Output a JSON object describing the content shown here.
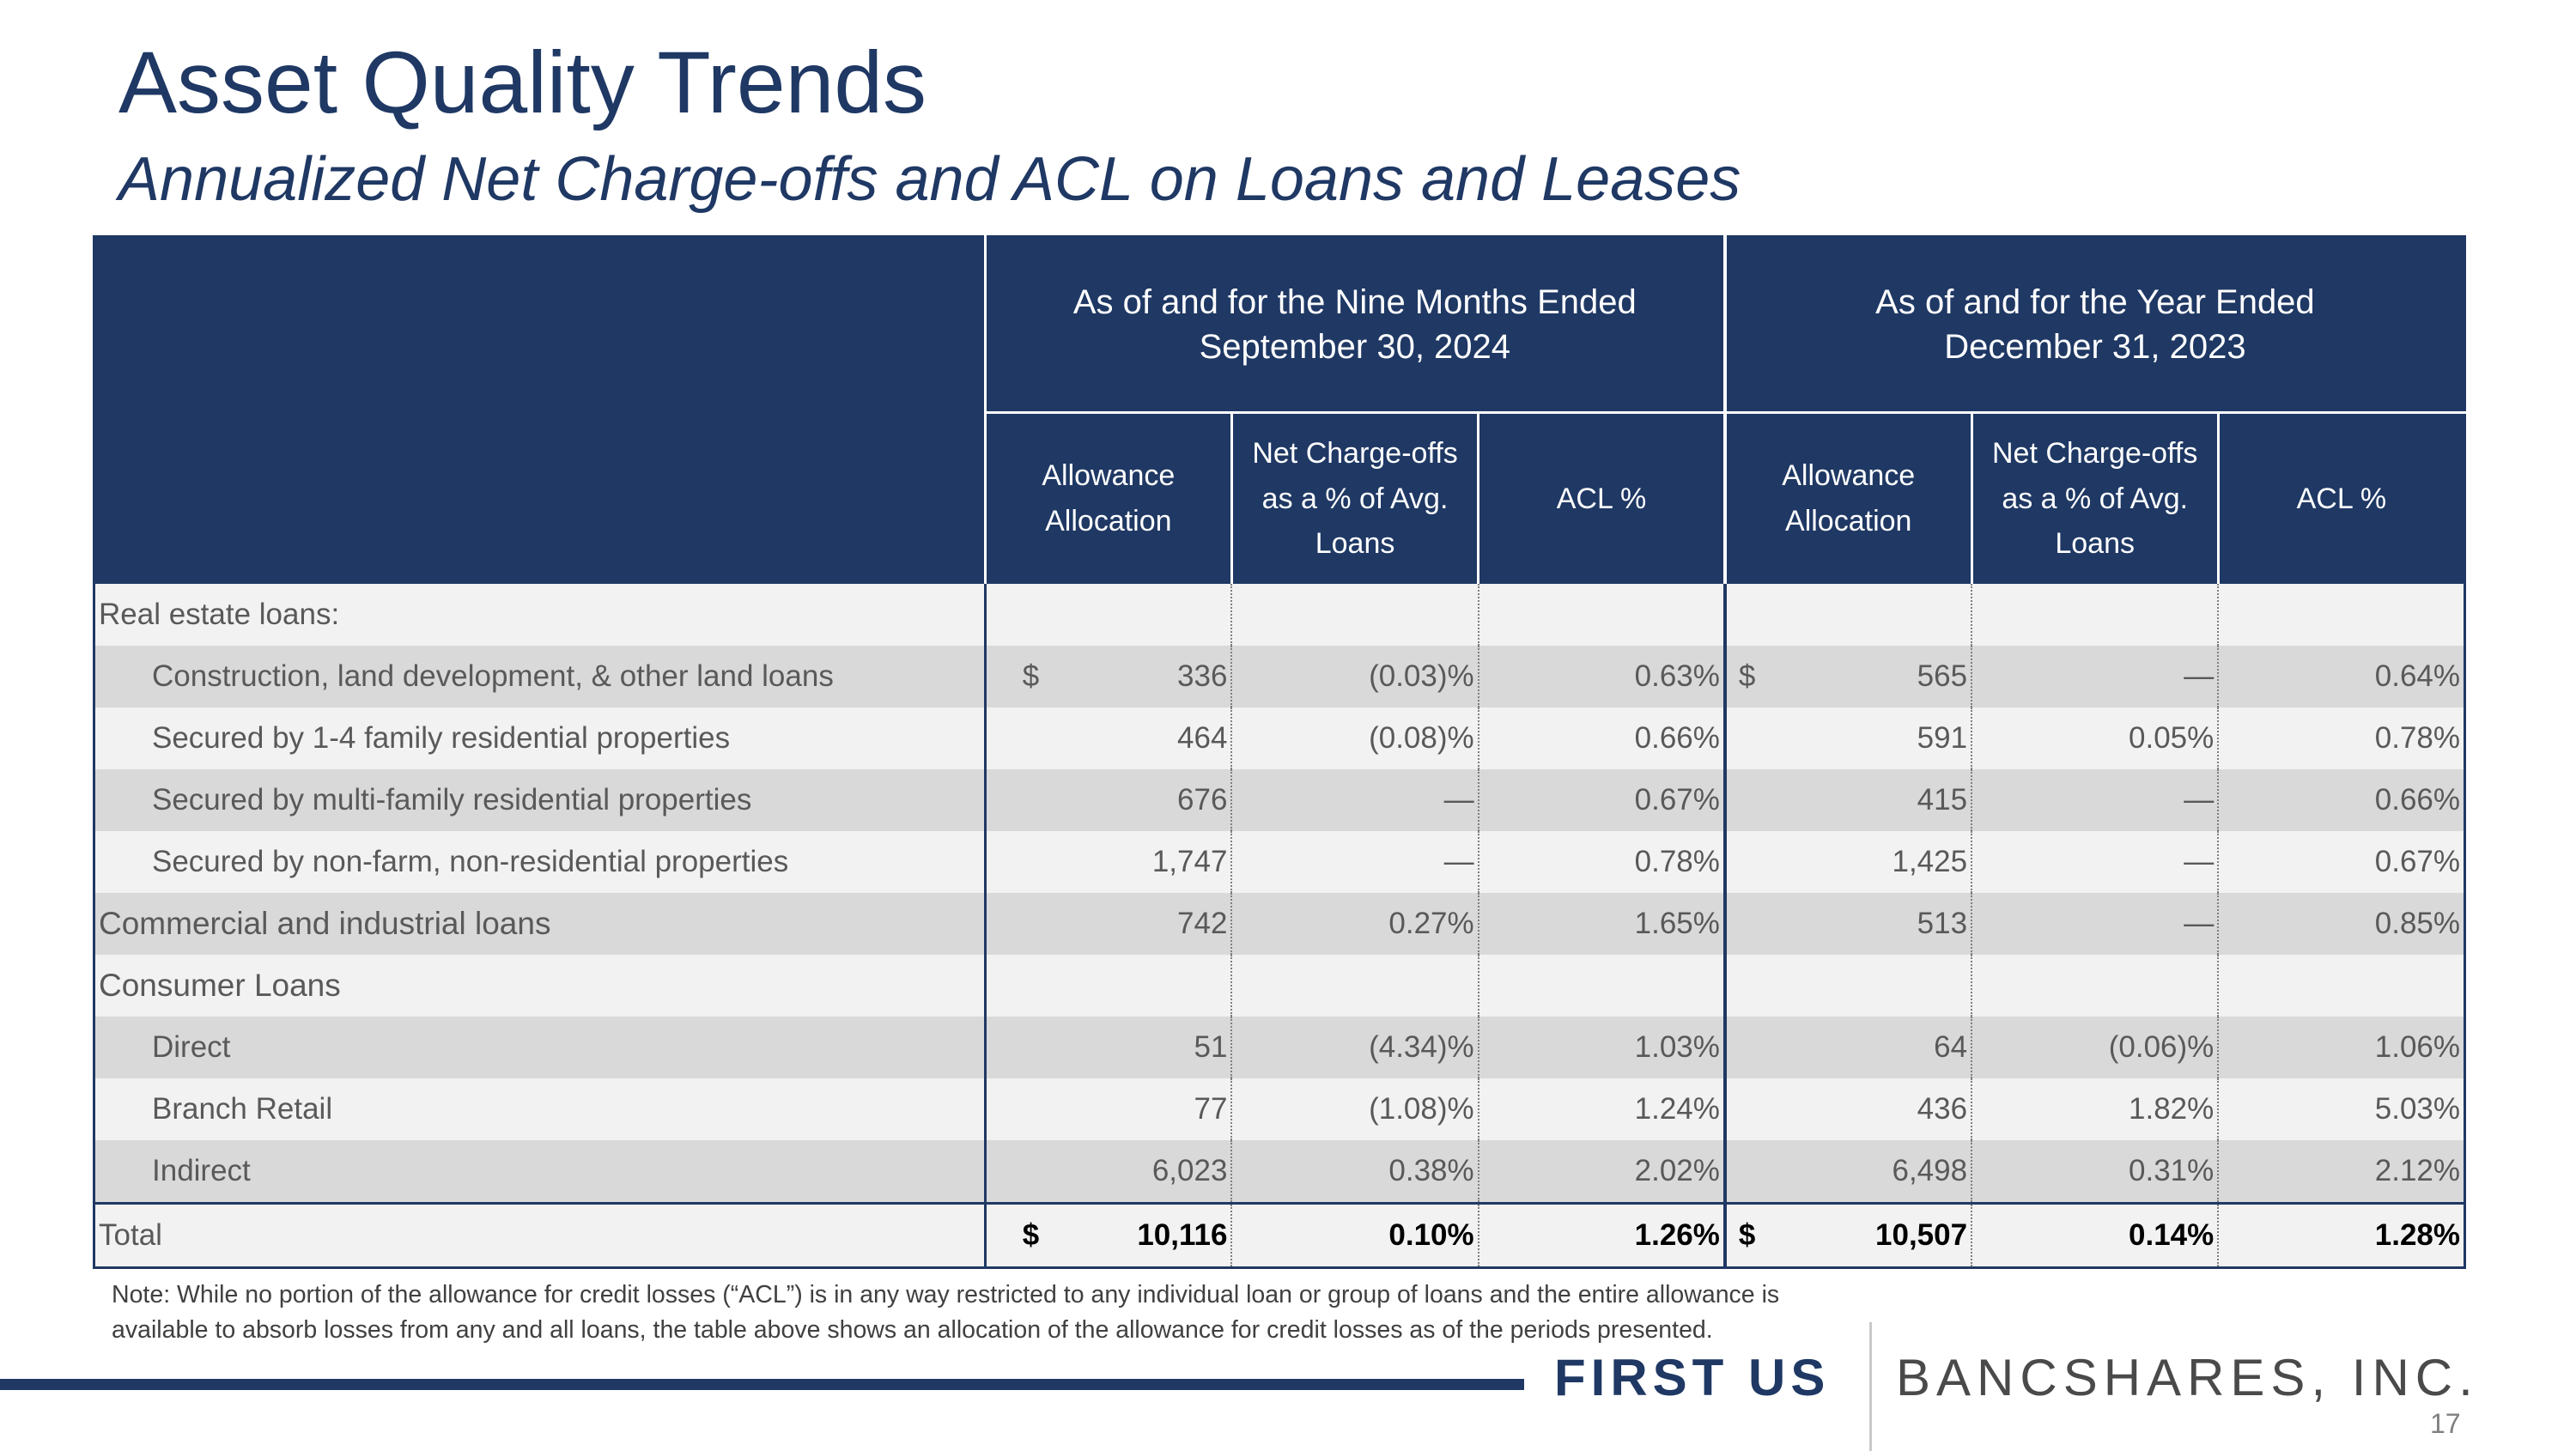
{
  "title": "Asset Quality Trends",
  "subtitle": "Annualized Net Charge-offs and ACL on Loans and Leases",
  "table": {
    "group_headers": [
      {
        "line1": "As of and for the Nine Months Ended",
        "line2": "September 30, 2024"
      },
      {
        "line1": "As of and for the Year Ended",
        "line2": "December 31, 2023"
      }
    ],
    "sub_headers": [
      {
        "line1": "Allowance",
        "line2": "Allocation",
        "line3": ""
      },
      {
        "line1": "Net Charge-offs",
        "line2": "as a % of Avg.",
        "line3": "Loans"
      },
      {
        "line1": "ACL %",
        "line2": "",
        "line3": ""
      },
      {
        "line1": "Allowance",
        "line2": "Allocation",
        "line3": ""
      },
      {
        "line1": "Net Charge-offs",
        "line2": "as a % of Avg.",
        "line3": "Loans"
      },
      {
        "line1": "ACL %",
        "line2": "",
        "line3": ""
      }
    ],
    "rows": [
      {
        "label": "Real estate loans:",
        "a1": "",
        "a1_cur": "",
        "n1": "",
        "p1": "",
        "a2": "",
        "a2_cur": "",
        "n2": "",
        "p2": ""
      },
      {
        "label": "Construction, land development, & other land loans",
        "a1": "336",
        "a1_cur": "$",
        "n1": "(0.03)%",
        "p1": "0.63%",
        "a2": "565",
        "a2_cur": "$",
        "n2": "—",
        "p2": "0.64%"
      },
      {
        "label": "Secured by 1-4 family residential properties",
        "a1": "464",
        "a1_cur": "",
        "n1": "(0.08)%",
        "p1": "0.66%",
        "a2": "591",
        "a2_cur": "",
        "n2": "0.05%",
        "p2": "0.78%"
      },
      {
        "label": "Secured by multi-family residential properties",
        "a1": "676",
        "a1_cur": "",
        "n1": "—",
        "p1": "0.67%",
        "a2": "415",
        "a2_cur": "",
        "n2": "—",
        "p2": "0.66%"
      },
      {
        "label": "Secured by non-farm, non-residential properties",
        "a1": "1,747",
        "a1_cur": "",
        "n1": "—",
        "p1": "0.78%",
        "a2": "1,425",
        "a2_cur": "",
        "n2": "—",
        "p2": "0.67%"
      },
      {
        "label": "Commercial and industrial loans",
        "a1": "742",
        "a1_cur": "",
        "n1": "0.27%",
        "p1": "1.65%",
        "a2": "513",
        "a2_cur": "",
        "n2": "—",
        "p2": "0.85%"
      },
      {
        "label": "Consumer Loans",
        "a1": "",
        "a1_cur": "",
        "n1": "",
        "p1": "",
        "a2": "",
        "a2_cur": "",
        "n2": "",
        "p2": ""
      },
      {
        "label": "Direct",
        "a1": "51",
        "a1_cur": "",
        "n1": "(4.34)%",
        "p1": "1.03%",
        "a2": "64",
        "a2_cur": "",
        "n2": "(0.06)%",
        "p2": "1.06%"
      },
      {
        "label": "Branch Retail",
        "a1": "77",
        "a1_cur": "",
        "n1": "(1.08)%",
        "p1": "1.24%",
        "a2": "436",
        "a2_cur": "",
        "n2": "1.82%",
        "p2": "5.03%"
      },
      {
        "label": "Indirect",
        "a1": "6,023",
        "a1_cur": "",
        "n1": "0.38%",
        "p1": "2.02%",
        "a2": "6,498",
        "a2_cur": "",
        "n2": "0.31%",
        "p2": "2.12%"
      }
    ],
    "total": {
      "label": "Total",
      "a1_cur": "$",
      "a1": "10,116",
      "n1": "0.10%",
      "p1": "1.26%",
      "a2_cur": "$",
      "a2": "10,507",
      "n2": "0.14%",
      "p2": "1.28%"
    }
  },
  "note": {
    "line1": "Note: While no portion of the allowance for credit losses (“ACL”) is in any way restricted to any individual loan or group of loans and the entire allowance is",
    "line2": "available to absorb losses from any and all loans, the table above shows an allocation of the allowance for credit losses as of the periods presented."
  },
  "logo": {
    "first": "FIRST US",
    "rest": "BANCSHARES, INC."
  },
  "page_number": "17",
  "colors": {
    "navy": "#1f3864",
    "row_light": "#f2f2f2",
    "row_dark": "#d9d9d9"
  }
}
